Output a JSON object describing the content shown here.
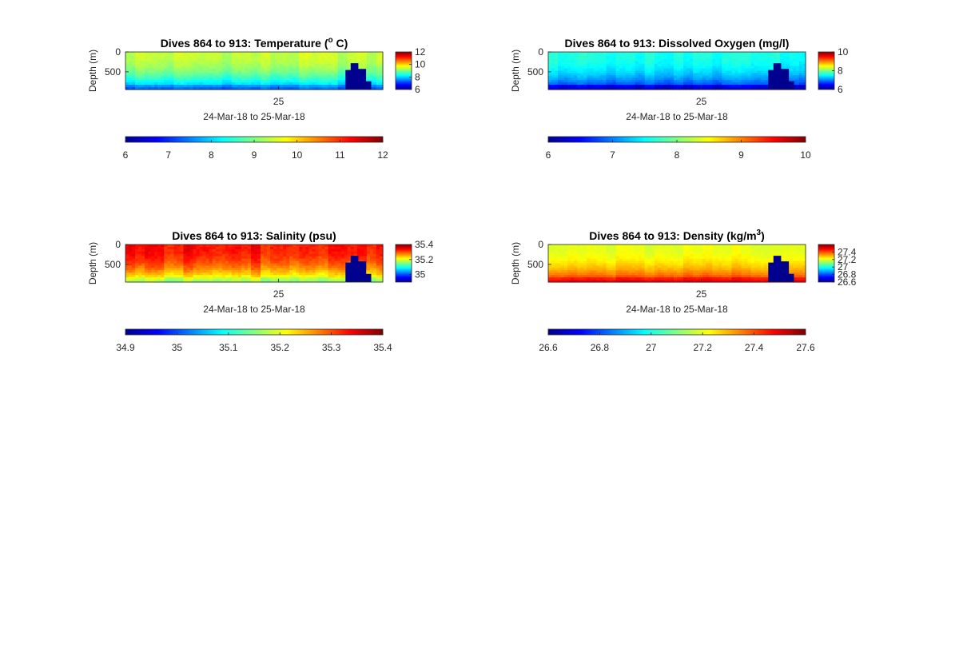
{
  "panels": [
    {
      "title": "Dives 864 to 913: Temperature (",
      "title_sup": "o",
      "title_after": " C)",
      "ylabel": "Depth (m)",
      "yticks": [
        0,
        500
      ],
      "xtick": "25",
      "xlabel": "24-Mar-18 to 25-Mar-18",
      "colorbar": {
        "min": 6,
        "max": 12,
        "ticks": [
          "12",
          "10",
          "8",
          "6"
        ],
        "tick_values": [
          12,
          10,
          8,
          6
        ]
      },
      "hcolorbar": {
        "min": 6,
        "max": 12,
        "ticks": [
          "6",
          "7",
          "8",
          "9",
          "10",
          "11",
          "12"
        ],
        "tick_values": [
          6,
          7,
          8,
          9,
          10,
          11,
          12
        ]
      },
      "field": {
        "base": 9.7,
        "top_value": 9.4,
        "bottom_value": 7.6,
        "variation": 0.35,
        "bottom_band": 0.12
      }
    },
    {
      "title": "Dives 864 to 913: Dissolved Oxygen (mg/l)",
      "title_sup": "",
      "title_after": "",
      "ylabel": "Depth (m)",
      "yticks": [
        0,
        500
      ],
      "xtick": "25",
      "xlabel": "24-Mar-18 to 25-Mar-18",
      "colorbar": {
        "min": 6,
        "max": 10,
        "ticks": [
          "10",
          "8",
          "6"
        ],
        "tick_values": [
          10,
          8,
          6
        ]
      },
      "hcolorbar": {
        "min": 6,
        "max": 10,
        "ticks": [
          "6",
          "7",
          "8",
          "9",
          "10"
        ],
        "tick_values": [
          6,
          7,
          8,
          9,
          10
        ]
      },
      "field": {
        "base": 7.75,
        "top_value": 7.6,
        "bottom_value": 6.6,
        "variation": 0.2,
        "bottom_band": 0.3
      }
    },
    {
      "title": "Dives 864 to 913: Salinity (psu)",
      "title_sup": "",
      "title_after": "",
      "ylabel": "Depth (m)",
      "yticks": [
        0,
        500
      ],
      "xtick": "25",
      "xlabel": "24-Mar-18 to 25-Mar-18",
      "colorbar": {
        "min": 34.9,
        "max": 35.4,
        "ticks": [
          "35.4",
          "35.2",
          "35"
        ],
        "tick_values": [
          35.4,
          35.2,
          35.0
        ]
      },
      "hcolorbar": {
        "min": 34.9,
        "max": 35.4,
        "ticks": [
          "34.9",
          "35",
          "35.1",
          "35.2",
          "35.3",
          "35.4"
        ],
        "tick_values": [
          34.9,
          35.0,
          35.1,
          35.2,
          35.3,
          35.4
        ]
      },
      "field": {
        "base": 35.3,
        "top_value": 35.33,
        "bottom_value": 35.18,
        "variation": 0.04,
        "bottom_band": 0.1
      }
    },
    {
      "title": "Dives 864 to 913: Density (kg/m",
      "title_sup": "3",
      "title_after": ")",
      "ylabel": "Depth (m)",
      "yticks": [
        0,
        500
      ],
      "xtick": "25",
      "xlabel": "24-Mar-18 to 25-Mar-18",
      "colorbar": {
        "min": 26.6,
        "max": 27.6,
        "ticks": [
          "27.4",
          "27.2",
          "27",
          "26.8",
          "26.6"
        ],
        "tick_values": [
          27.4,
          27.2,
          27.0,
          26.8,
          26.6
        ]
      },
      "hcolorbar": {
        "min": 26.6,
        "max": 27.6,
        "ticks": [
          "26.6",
          "26.8",
          "27",
          "27.2",
          "27.4",
          "27.6"
        ],
        "tick_values": [
          26.6,
          26.8,
          27.0,
          27.2,
          27.4,
          27.6
        ]
      },
      "field": {
        "base": 27.2,
        "top_value": 27.2,
        "bottom_value": 27.45,
        "variation": 0.04,
        "bottom_band": 0.15
      }
    }
  ],
  "chart_data": [
    {
      "type": "heatmap",
      "title": "Dives 864 to 913: Temperature (o C)",
      "xlabel": "24-Mar-18 to 25-Mar-18",
      "ylabel": "Depth (m)",
      "colormap": "jet",
      "clim": [
        6,
        12
      ],
      "y_ticks": [
        0,
        500
      ],
      "x_ticks": [
        "25"
      ]
    },
    {
      "type": "heatmap",
      "title": "Dives 864 to 913: Dissolved Oxygen (mg/l)",
      "xlabel": "24-Mar-18 to 25-Mar-18",
      "ylabel": "Depth (m)",
      "colormap": "jet",
      "clim": [
        6,
        10
      ],
      "y_ticks": [
        0,
        500
      ],
      "x_ticks": [
        "25"
      ]
    },
    {
      "type": "heatmap",
      "title": "Dives 864 to 913: Salinity (psu)",
      "xlabel": "24-Mar-18 to 25-Mar-18",
      "ylabel": "Depth (m)",
      "colormap": "jet",
      "clim": [
        34.9,
        35.4
      ],
      "y_ticks": [
        0,
        500
      ],
      "x_ticks": [
        "25"
      ]
    },
    {
      "type": "heatmap",
      "title": "Dives 864 to 913: Density (kg/m3)",
      "xlabel": "24-Mar-18 to 25-Mar-18",
      "ylabel": "Depth (m)",
      "colormap": "jet",
      "clim": [
        26.6,
        27.6
      ],
      "y_ticks": [
        0,
        500
      ],
      "x_ticks": [
        "25"
      ]
    }
  ]
}
